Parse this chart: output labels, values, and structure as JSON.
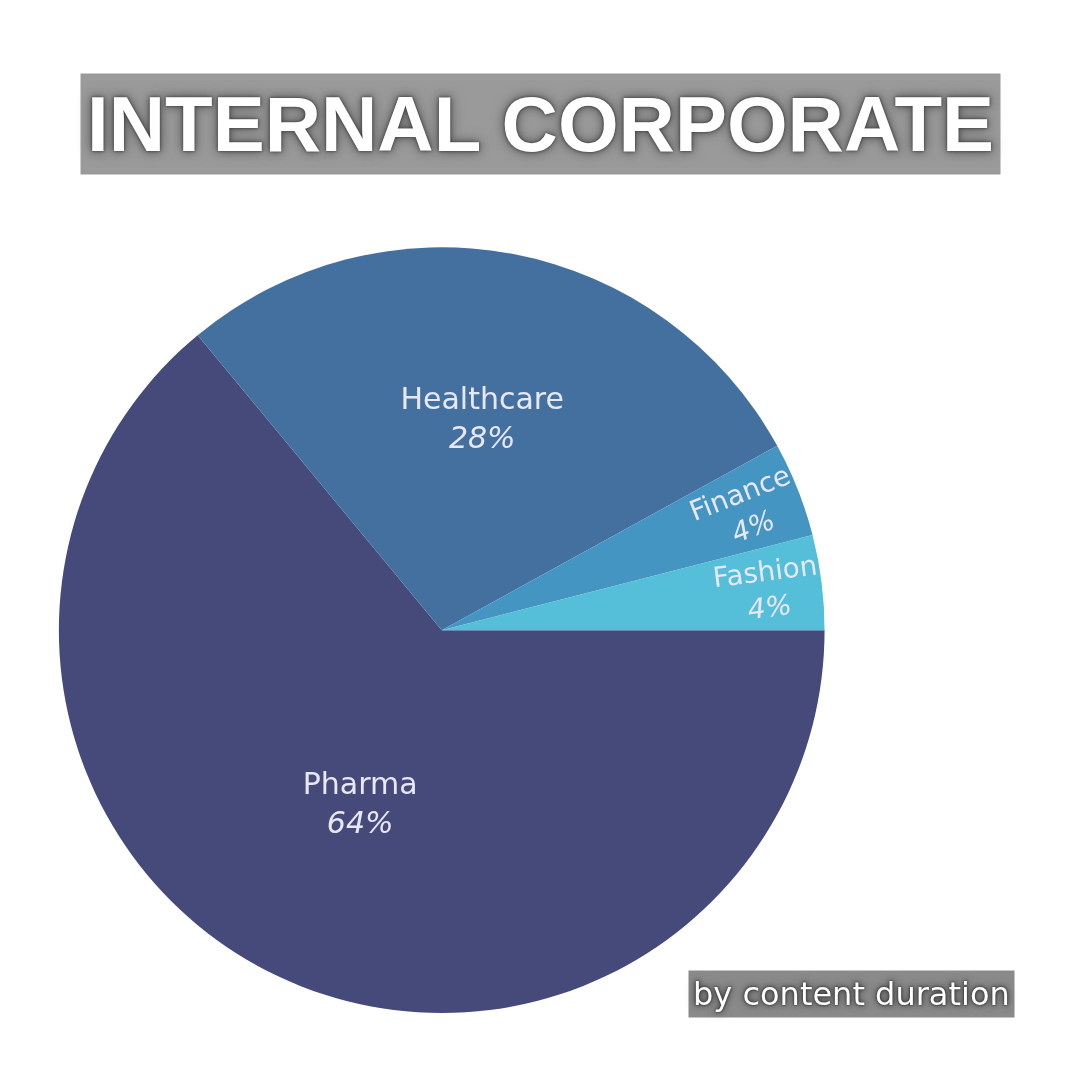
{
  "chart_data": {
    "type": "pie",
    "title": "INTERNAL CORPORATE",
    "categories": [
      "Pharma",
      "Healthcare",
      "Finance",
      "Fashion"
    ],
    "values": [
      64,
      28,
      4,
      4
    ],
    "value_labels": [
      "64%",
      "28%",
      "4%",
      "4%"
    ],
    "colors": [
      "#464a7b",
      "#4470a0",
      "#4595c3",
      "#55bed8"
    ],
    "annotations": [
      "by content duration"
    ],
    "legend": false
  }
}
